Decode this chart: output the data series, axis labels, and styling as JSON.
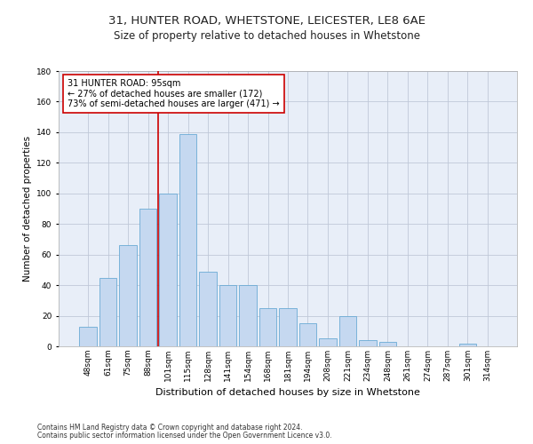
{
  "title1": "31, HUNTER ROAD, WHETSTONE, LEICESTER, LE8 6AE",
  "title2": "Size of property relative to detached houses in Whetstone",
  "xlabel": "Distribution of detached houses by size in Whetstone",
  "ylabel": "Number of detached properties",
  "categories": [
    "48sqm",
    "61sqm",
    "75sqm",
    "88sqm",
    "101sqm",
    "115sqm",
    "128sqm",
    "141sqm",
    "154sqm",
    "168sqm",
    "181sqm",
    "194sqm",
    "208sqm",
    "221sqm",
    "234sqm",
    "248sqm",
    "261sqm",
    "274sqm",
    "287sqm",
    "301sqm",
    "314sqm"
  ],
  "values": [
    13,
    45,
    66,
    90,
    100,
    139,
    49,
    40,
    40,
    25,
    25,
    15,
    5,
    20,
    4,
    3,
    0,
    0,
    0,
    2,
    0
  ],
  "bar_color": "#c5d8f0",
  "bar_edge_color": "#6aaad4",
  "vline_x": 3.5,
  "vline_color": "#cc0000",
  "annotation_text": "31 HUNTER ROAD: 95sqm\n← 27% of detached houses are smaller (172)\n73% of semi-detached houses are larger (471) →",
  "annotation_box_color": "#ffffff",
  "annotation_box_edge": "#cc0000",
  "ylim": [
    0,
    180
  ],
  "yticks": [
    0,
    20,
    40,
    60,
    80,
    100,
    120,
    140,
    160,
    180
  ],
  "footer1": "Contains HM Land Registry data © Crown copyright and database right 2024.",
  "footer2": "Contains public sector information licensed under the Open Government Licence v3.0.",
  "bg_color": "#e8eef8",
  "grid_color": "#c0c8d8",
  "title1_fontsize": 9.5,
  "title2_fontsize": 8.5,
  "xlabel_fontsize": 8,
  "ylabel_fontsize": 7.5,
  "tick_fontsize": 6.5,
  "annotation_fontsize": 7,
  "footer_fontsize": 5.5
}
